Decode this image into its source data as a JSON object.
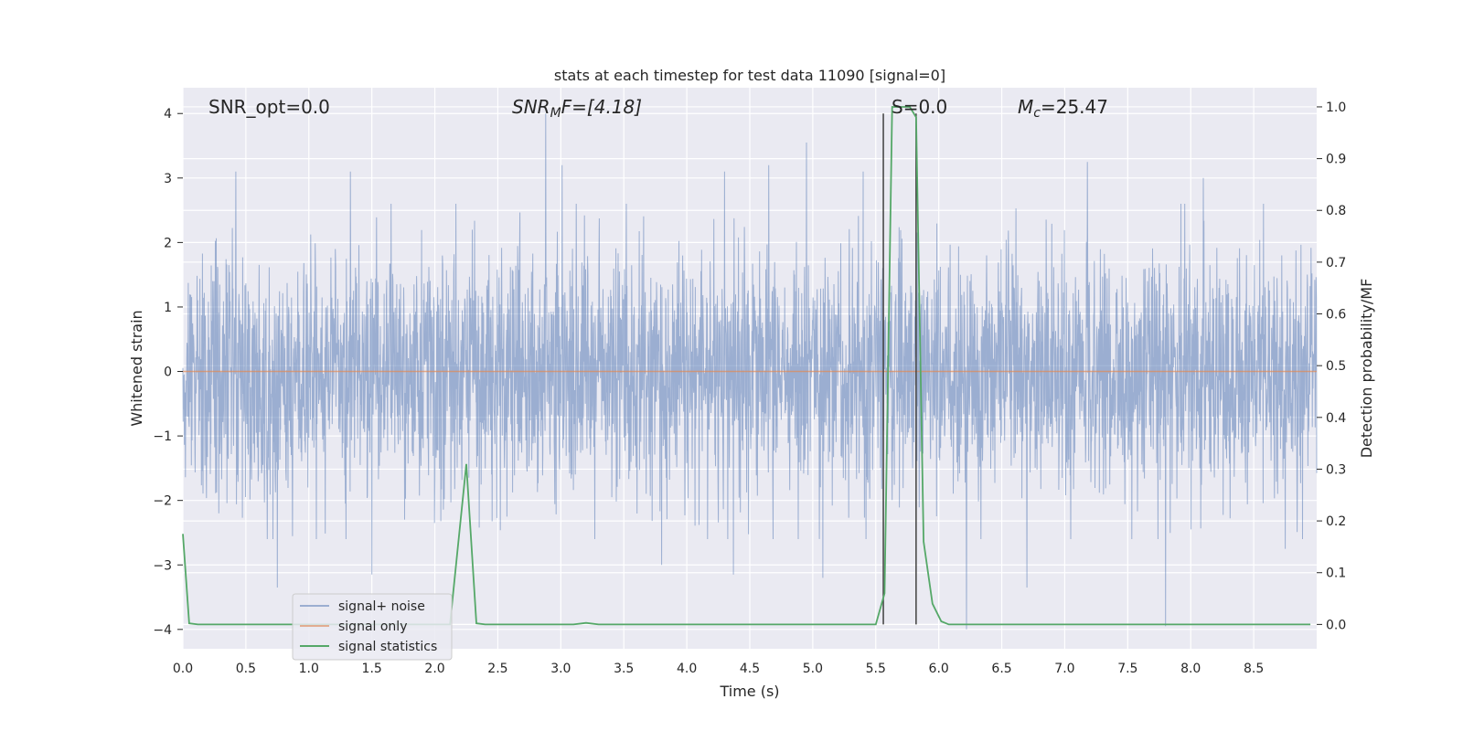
{
  "chart_data": {
    "type": "line",
    "title": "stats at each timestep for test data 11090 [signal=0]",
    "xlabel": "Time (s)",
    "ylabel": "Whitened strain",
    "y2label": "Detection probability/MF",
    "xlim": [
      0,
      9
    ],
    "ylim": [
      -4.3,
      4.4
    ],
    "y2lim": [
      -0.047,
      1.037
    ],
    "x_ticks": [
      0.0,
      0.5,
      1.0,
      1.5,
      2.0,
      2.5,
      3.0,
      3.5,
      4.0,
      4.5,
      5.0,
      5.5,
      6.0,
      6.5,
      7.0,
      7.5,
      8.0,
      8.5
    ],
    "x_tick_labels": [
      "0.0",
      "0.5",
      "1.0",
      "1.5",
      "2.0",
      "2.5",
      "3.0",
      "3.5",
      "4.0",
      "4.5",
      "5.0",
      "5.5",
      "6.0",
      "6.5",
      "7.0",
      "7.5",
      "8.0",
      "8.5"
    ],
    "y_ticks": [
      4,
      3,
      2,
      1,
      0,
      -1,
      -2,
      -3,
      -4
    ],
    "y_tick_labels": [
      "4",
      "3",
      "2",
      "1",
      "0",
      "−1",
      "−2",
      "−3",
      "−4"
    ],
    "y2_ticks": [
      1.0,
      0.9,
      0.8,
      0.7,
      0.6,
      0.5,
      0.4,
      0.3,
      0.2,
      0.1,
      0.0
    ],
    "y2_tick_labels": [
      "1.0",
      "0.9",
      "0.8",
      "0.7",
      "0.6",
      "0.5",
      "0.4",
      "0.3",
      "0.2",
      "0.1",
      "0.0"
    ],
    "grid": true,
    "legend_position": "lower-left",
    "series": [
      {
        "name": "signal+ noise",
        "color": "#4c72b0",
        "axis": "left",
        "envelope_typical": [
          -1.6,
          1.6
        ],
        "x_range": [
          0,
          9
        ],
        "spikes": [
          {
            "x": 0.42,
            "y": 3.1
          },
          {
            "x": 1.33,
            "y": 3.1
          },
          {
            "x": 2.88,
            "y": 4.0
          },
          {
            "x": 3.01,
            "y": 3.2
          },
          {
            "x": 4.3,
            "y": 3.1
          },
          {
            "x": 4.65,
            "y": 3.2
          },
          {
            "x": 4.95,
            "y": 3.55
          },
          {
            "x": 5.4,
            "y": 3.1
          },
          {
            "x": 7.18,
            "y": 3.25
          },
          {
            "x": 8.1,
            "y": 3.0
          },
          {
            "x": 0.75,
            "y": -3.35
          },
          {
            "x": 1.5,
            "y": -3.15
          },
          {
            "x": 3.8,
            "y": -3.0
          },
          {
            "x": 4.37,
            "y": -3.15
          },
          {
            "x": 5.08,
            "y": -3.2
          },
          {
            "x": 6.22,
            "y": -4.0
          },
          {
            "x": 6.7,
            "y": -3.35
          },
          {
            "x": 7.8,
            "y": -3.95
          },
          {
            "x": 8.75,
            "y": -2.75
          }
        ]
      },
      {
        "name": "signal only",
        "color": "#dd8452",
        "axis": "left",
        "x": [
          0,
          9
        ],
        "y": [
          0,
          0
        ]
      },
      {
        "name": "signal statistics",
        "color": "#55a868",
        "axis": "right",
        "x": [
          0.0,
          0.05,
          0.12,
          0.5,
          1.0,
          1.5,
          2.0,
          2.12,
          2.25,
          2.33,
          2.4,
          3.0,
          3.1,
          3.2,
          3.3,
          4.0,
          5.0,
          5.5,
          5.57,
          5.63,
          5.7,
          5.77,
          5.82,
          5.88,
          5.95,
          6.02,
          6.08,
          7.0,
          8.0,
          8.95
        ],
        "y": [
          0.175,
          0.002,
          0.0,
          0.0,
          0.0,
          0.0,
          0.0,
          0.0,
          0.31,
          0.002,
          0.0,
          0.0,
          0.0,
          0.003,
          0.0,
          0.0,
          0.0,
          0.0,
          0.06,
          1.0,
          1.0,
          1.0,
          0.98,
          0.16,
          0.04,
          0.006,
          0.0,
          0.0,
          0.0,
          0.0
        ]
      }
    ],
    "vertical_lines": [
      {
        "x": 5.56,
        "color": "#404040"
      },
      {
        "x": 5.82,
        "color": "#404040"
      }
    ],
    "annotations": [
      {
        "text": "SNR_opt=0.0",
        "x": 0.2
      },
      {
        "text_parts": [
          "SNR",
          "M",
          "F=[4.18]"
        ],
        "x": 2.6
      },
      {
        "text": "S=0.0",
        "x": 5.6
      },
      {
        "text_parts": [
          "M",
          "c",
          "=25.47"
        ],
        "x": 6.6
      }
    ]
  }
}
